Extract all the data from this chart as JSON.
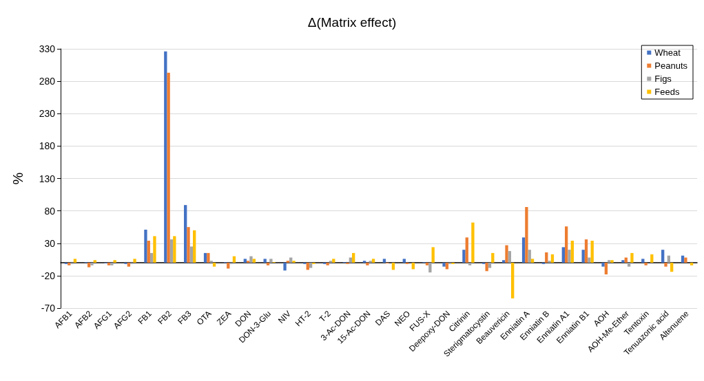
{
  "chart_data": {
    "type": "bar",
    "title": "Δ(Matrix effect)",
    "ylabel": "%",
    "categories": [
      "AFB1",
      "AFB2",
      "AFG1",
      "AFG2",
      "FB1",
      "FB2",
      "FB3",
      "OTA",
      "ZEA",
      "DON",
      "DON-3-Glu",
      "NIV",
      "HT-2",
      "T-2",
      "3-Ac-DON",
      "15-Ac-DON",
      "DAS",
      "NEO",
      "FUS-X",
      "Deepoxy-DON",
      "Citrinin",
      "Sterigmatocystin",
      "Beauvericin",
      "Enniatin A",
      "Enniatin B",
      "Enniatin A1",
      "Enniatin B1",
      "AOH",
      "AOH-Me-Ether",
      "Tentoxin",
      "Tenuazonic acid",
      "Altenuene"
    ],
    "series": [
      {
        "name": "Wheat",
        "color": "#4472c4",
        "values": [
          -2,
          1,
          -1,
          -2,
          51,
          326,
          89,
          15,
          1,
          6,
          6,
          -12,
          -2,
          -2,
          1,
          3,
          6,
          6,
          1,
          -6,
          20,
          -2,
          4,
          39,
          -2,
          24,
          20,
          -6,
          4,
          6,
          20,
          11
        ]
      },
      {
        "name": "Peanuts",
        "color": "#ed7d31",
        "values": [
          -4,
          -7,
          -4,
          -6,
          34,
          293,
          55,
          15,
          -9,
          3,
          -4,
          3,
          -11,
          -4,
          -2,
          -4,
          -1,
          -2,
          -4,
          -10,
          39,
          -13,
          27,
          86,
          16,
          56,
          36,
          -18,
          8,
          -4,
          -6,
          8
        ]
      },
      {
        "name": "Figs",
        "color": "#a5a5a5",
        "values": [
          -2,
          -4,
          -4,
          -2,
          15,
          36,
          25,
          3,
          -2,
          10,
          6,
          8,
          -8,
          3,
          8,
          3,
          0,
          0,
          -15,
          -2,
          -4,
          -8,
          18,
          20,
          3,
          20,
          8,
          4,
          -6,
          0,
          11,
          0
        ]
      },
      {
        "name": "Feeds",
        "color": "#ffc000",
        "values": [
          6,
          4,
          4,
          6,
          41,
          41,
          50,
          -6,
          10,
          6,
          1,
          3,
          -2,
          6,
          15,
          6,
          -11,
          -10,
          24,
          -2,
          62,
          15,
          -55,
          6,
          13,
          34,
          34,
          4,
          15,
          13,
          -14,
          -4
        ]
      }
    ],
    "ylim": [
      -70,
      330
    ],
    "yticks": [
      -70,
      -20,
      30,
      80,
      130,
      180,
      230,
      280,
      330
    ],
    "grid": "y",
    "legend": "top right"
  }
}
